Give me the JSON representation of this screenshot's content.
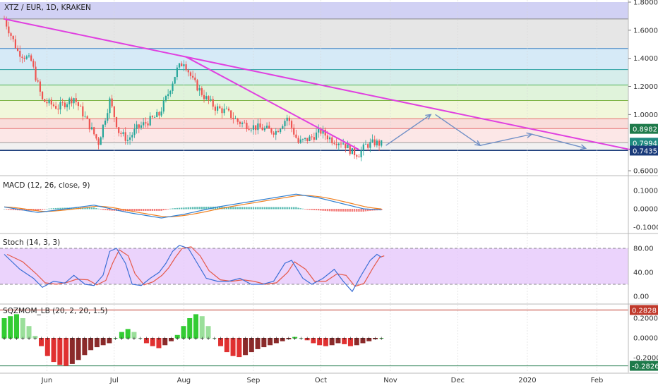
{
  "colors": {
    "up": "#26a69a",
    "down": "#ef5350",
    "trendline": "#e040e0",
    "arrow": "#6f8fc6",
    "macd_line": "#2f7fd1",
    "signal_line": "#f08020",
    "stoch_k": "#3b6fd6",
    "stoch_d": "#e55a4a",
    "stoch_band": "#e6c8fb",
    "level_blue_tag": "#1a3b7a",
    "level_green_tag": "#1e7a4a",
    "hist_positive": "#9adf9a",
    "hist_negative": "#e88a8a"
  },
  "header": {
    "symbol": "XTZ / EUR, 1D, KRAKEN"
  },
  "panels": {
    "macd": {
      "title": "MACD (12, 26, close, 9)"
    },
    "stoch": {
      "title": "Stoch (14, 3, 3)"
    },
    "sqzmom": {
      "title": "SQZMOM_LB (20, 2, 20, 1.5)"
    }
  },
  "price_axis": {
    "ticks": [
      "1.8000",
      "1.6000",
      "1.4000",
      "1.2000",
      "1.0000",
      "0.6000"
    ],
    "tags": [
      {
        "text": "0.8982",
        "color": "#1e7a4a"
      },
      {
        "text": "0.7994",
        "color": "#1f8a80"
      },
      {
        "text": "0.7435",
        "color": "#1a3b7a"
      }
    ]
  },
  "macd_axis": {
    "ticks": [
      "0.1000",
      "0.0000",
      "-0.1000"
    ]
  },
  "stoch_axis": {
    "ticks": [
      "80.00",
      "40.00",
      "0.00"
    ]
  },
  "sqz_axis": {
    "ticks": [
      "0.2000",
      "0.0000",
      "-0.2000"
    ],
    "tags": [
      {
        "text": "0.2828",
        "color": "#c0392b"
      },
      {
        "text": "-0.2826",
        "color": "#1e7a4a"
      }
    ]
  },
  "time_axis": {
    "labels": [
      "Jun",
      "Jul",
      "Aug",
      "Sep",
      "Oct",
      "Nov",
      "Dec",
      "2020",
      "Feb"
    ]
  },
  "chart_data": {
    "type": "candlestick",
    "title": "XTZ / EUR, 1D, KRAKEN",
    "ylim": [
      0.6,
      1.8
    ],
    "fib_levels": [
      1.68,
      1.47,
      1.32,
      1.21,
      1.1,
      0.97,
      0.9,
      0.8,
      0.745
    ],
    "trendlines": [
      {
        "from": [
          "May 22",
          1.68
        ],
        "to": [
          "Feb 28",
          0.74
        ]
      },
      {
        "from": [
          "Aug 11",
          1.41
        ],
        "to": [
          "Oct 27",
          0.75
        ]
      }
    ],
    "close_path": [
      {
        "x": "May 22",
        "y": 1.68
      },
      {
        "x": "May 28",
        "y": 1.45
      },
      {
        "x": "Jun 3",
        "y": 1.38
      },
      {
        "x": "Jun 8",
        "y": 1.1
      },
      {
        "x": "Jun 15",
        "y": 1.05
      },
      {
        "x": "Jun 22",
        "y": 1.12
      },
      {
        "x": "Jun 28",
        "y": 0.95
      },
      {
        "x": "Jul 3",
        "y": 0.8
      },
      {
        "x": "Jul 8",
        "y": 1.1
      },
      {
        "x": "Jul 12",
        "y": 0.88
      },
      {
        "x": "Jul 16",
        "y": 0.82
      },
      {
        "x": "Jul 20",
        "y": 0.9
      },
      {
        "x": "Jul 25",
        "y": 0.95
      },
      {
        "x": "Jul 30",
        "y": 1.0
      },
      {
        "x": "Aug 3",
        "y": 1.15
      },
      {
        "x": "Aug 7",
        "y": 1.32
      },
      {
        "x": "Aug 10",
        "y": 1.38
      },
      {
        "x": "Aug 14",
        "y": 1.24
      },
      {
        "x": "Aug 19",
        "y": 1.13
      },
      {
        "x": "Aug 24",
        "y": 1.05
      },
      {
        "x": "Aug 29",
        "y": 1.02
      },
      {
        "x": "Sep 3",
        "y": 0.95
      },
      {
        "x": "Sep 8",
        "y": 0.92
      },
      {
        "x": "Sep 14",
        "y": 0.9
      },
      {
        "x": "Sep 20",
        "y": 0.88
      },
      {
        "x": "Sep 25",
        "y": 0.98
      },
      {
        "x": "Sep 30",
        "y": 0.8
      },
      {
        "x": "Oct 5",
        "y": 0.83
      },
      {
        "x": "Oct 10",
        "y": 0.88
      },
      {
        "x": "Oct 15",
        "y": 0.82
      },
      {
        "x": "Oct 20",
        "y": 0.8
      },
      {
        "x": "Oct 24",
        "y": 0.73
      },
      {
        "x": "Oct 27",
        "y": 0.72
      },
      {
        "x": "Oct 30",
        "y": 0.78
      },
      {
        "x": "Nov 3",
        "y": 0.8
      },
      {
        "x": "Nov 6",
        "y": 0.79
      }
    ],
    "projection_arrows": [
      {
        "from": [
          "Nov 8",
          0.78
        ],
        "to": [
          "Nov 28",
          1.0
        ]
      },
      {
        "from": [
          "Nov 30",
          1.0
        ],
        "to": [
          "Dec 20",
          0.78
        ]
      },
      {
        "from": [
          "Dec 20",
          0.78
        ],
        "to": [
          "Jan 12",
          0.86
        ]
      },
      {
        "from": [
          "Jan 12",
          0.86
        ],
        "to": [
          "Feb 5",
          0.76
        ]
      }
    ],
    "stoch_k": [
      [
        "May 22",
        70
      ],
      [
        "May 29",
        45
      ],
      [
        "Jun 4",
        30
      ],
      [
        "Jun 8",
        15
      ],
      [
        "Jun 13",
        25
      ],
      [
        "Jun 18",
        22
      ],
      [
        "Jun 22",
        35
      ],
      [
        "Jun 27",
        20
      ],
      [
        "Jul 1",
        18
      ],
      [
        "Jul 5",
        35
      ],
      [
        "Jul 8",
        75
      ],
      [
        "Jul 11",
        80
      ],
      [
        "Jul 15",
        55
      ],
      [
        "Jul 18",
        20
      ],
      [
        "Jul 22",
        18
      ],
      [
        "Jul 26",
        30
      ],
      [
        "Jul 30",
        40
      ],
      [
        "Aug 2",
        55
      ],
      [
        "Aug 5",
        75
      ],
      [
        "Aug 8",
        85
      ],
      [
        "Aug 12",
        80
      ],
      [
        "Aug 16",
        55
      ],
      [
        "Aug 20",
        30
      ],
      [
        "Aug 25",
        25
      ],
      [
        "Aug 30",
        25
      ],
      [
        "Sep 4",
        30
      ],
      [
        "Sep 9",
        20
      ],
      [
        "Sep 14",
        20
      ],
      [
        "Sep 19",
        25
      ],
      [
        "Sep 24",
        55
      ],
      [
        "Sep 27",
        60
      ],
      [
        "Oct 2",
        30
      ],
      [
        "Oct 6",
        20
      ],
      [
        "Oct 11",
        30
      ],
      [
        "Oct 16",
        45
      ],
      [
        "Oct 20",
        25
      ],
      [
        "Oct 24",
        8
      ],
      [
        "Oct 28",
        35
      ],
      [
        "Nov 1",
        60
      ],
      [
        "Nov 4",
        70
      ],
      [
        "Nov 6",
        65
      ]
    ],
    "sqzmom": [
      0.2,
      0.22,
      0.24,
      0.2,
      0.12,
      0.02,
      -0.08,
      -0.18,
      -0.24,
      -0.27,
      -0.28,
      -0.26,
      -0.22,
      -0.17,
      -0.12,
      -0.09,
      -0.07,
      -0.05,
      0.0,
      0.06,
      0.09,
      0.06,
      0.0,
      -0.05,
      -0.08,
      -0.1,
      -0.07,
      -0.03,
      0.03,
      0.12,
      0.2,
      0.24,
      0.22,
      0.12,
      0.0,
      -0.08,
      -0.14,
      -0.18,
      -0.19,
      -0.17,
      -0.14,
      -0.11,
      -0.09,
      -0.07,
      -0.05,
      -0.03,
      -0.01,
      0.01,
      0.0,
      -0.02,
      -0.05,
      -0.07,
      -0.08,
      -0.07,
      -0.05,
      -0.06,
      -0.08,
      -0.07,
      -0.05,
      -0.03,
      -0.01,
      0.0
    ]
  }
}
